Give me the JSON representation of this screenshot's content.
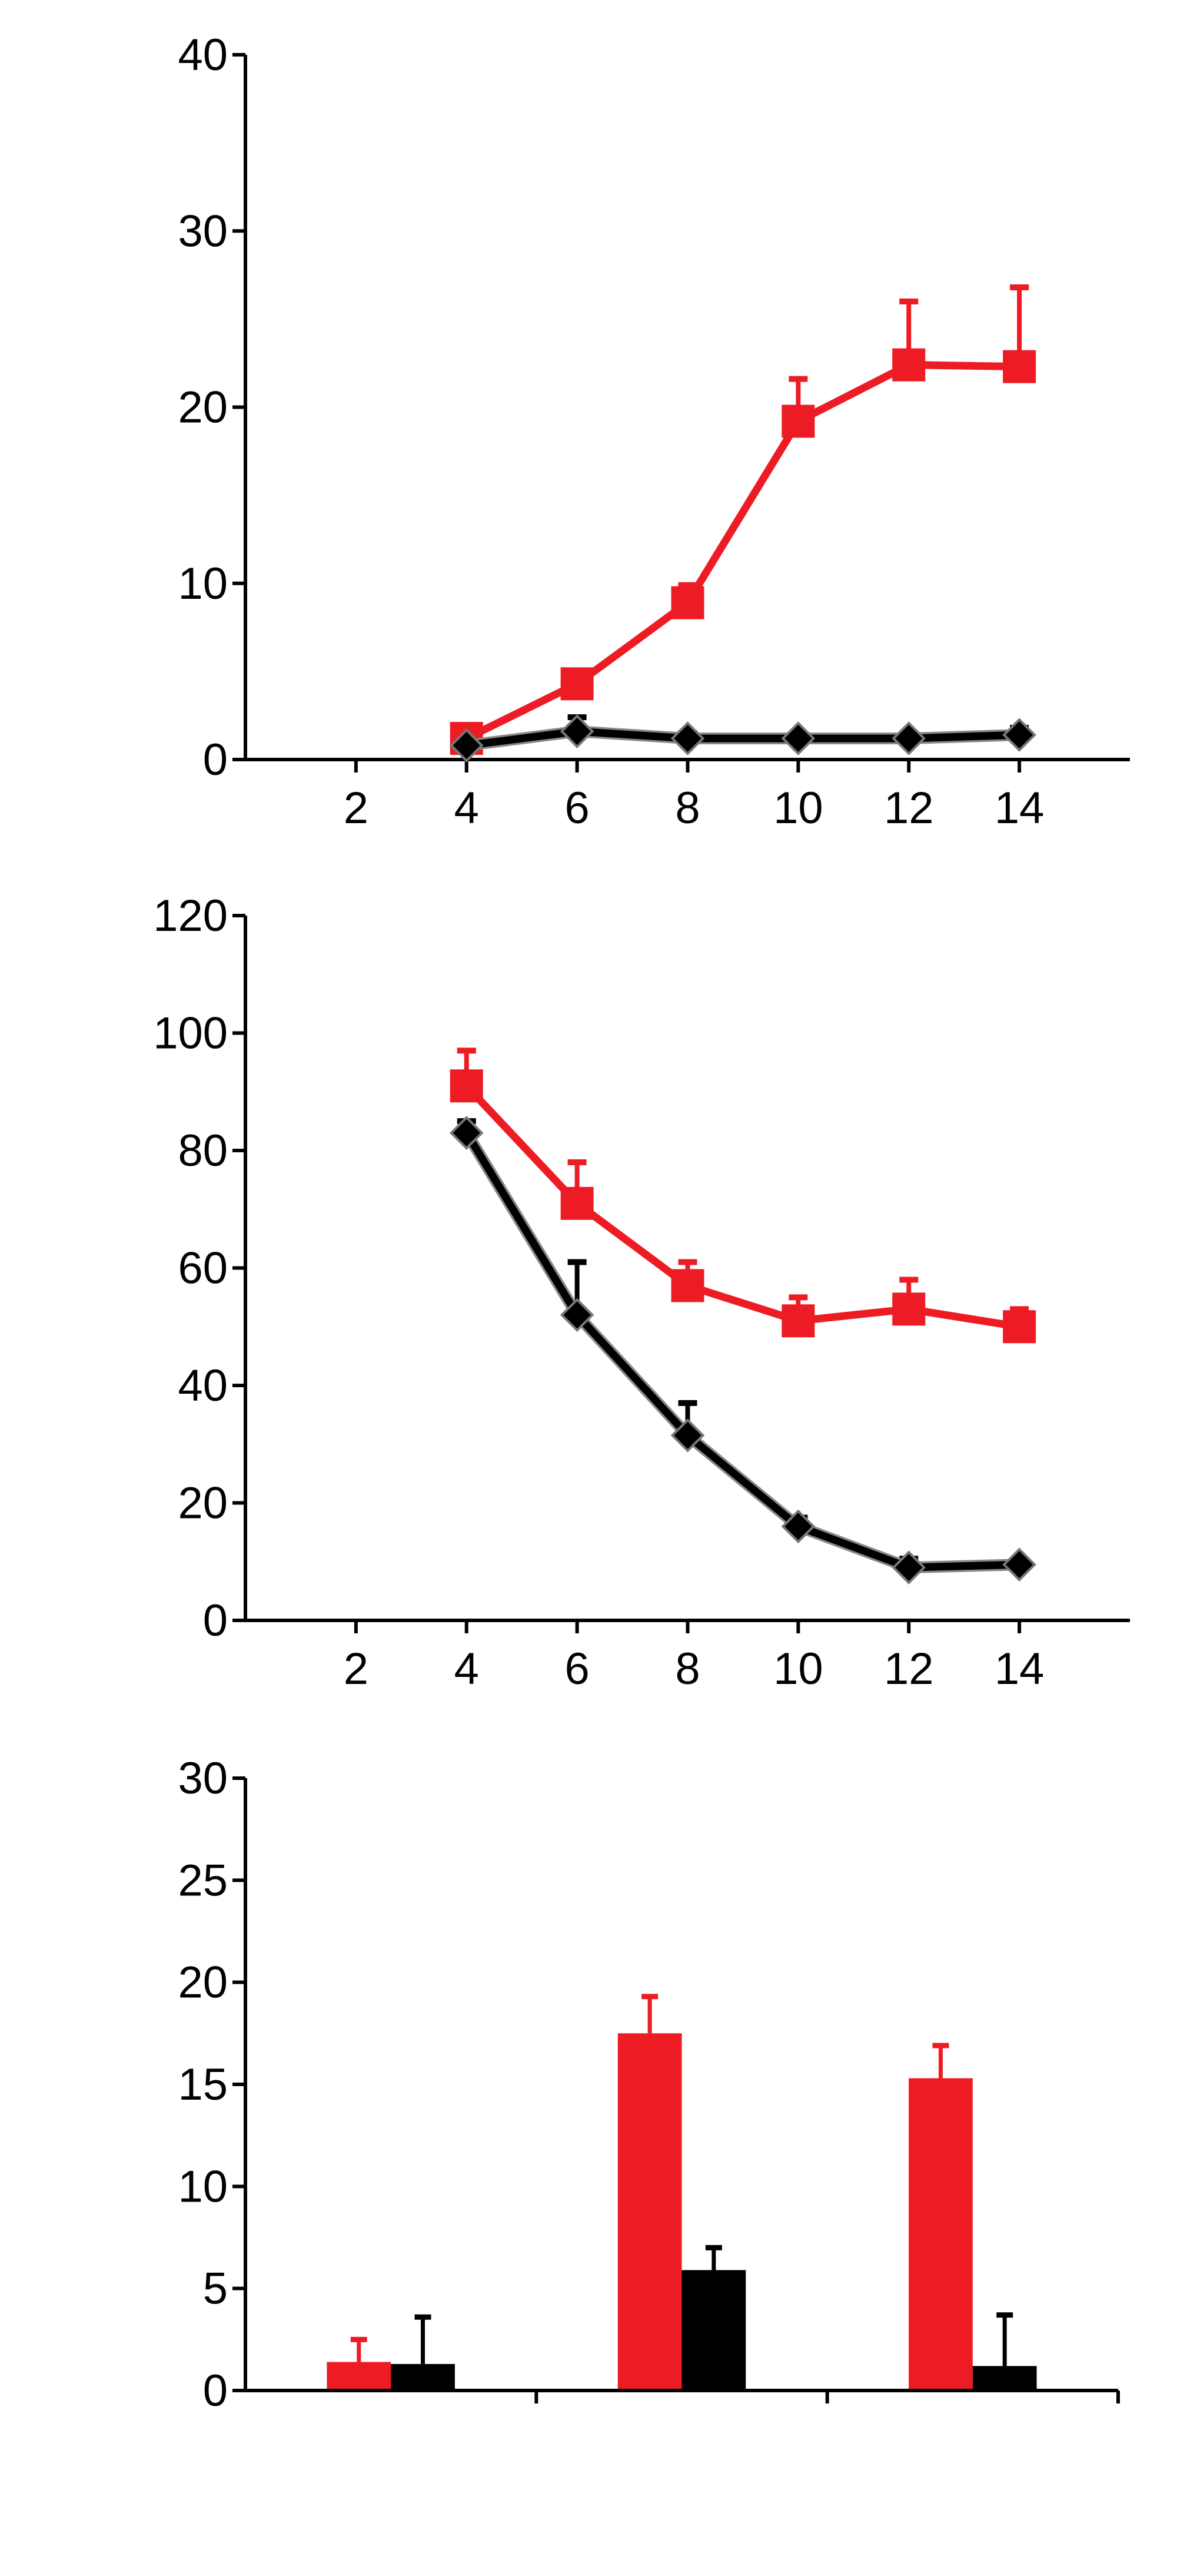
{
  "colors": {
    "treated": "#ED1C24",
    "control": "#000000"
  },
  "chart_data": [
    {
      "type": "line",
      "xlim": [
        0,
        16
      ],
      "ylim": [
        0,
        40
      ],
      "xticks": [
        "2",
        "4",
        "6",
        "8",
        "10",
        "12",
        "14"
      ],
      "yticks": [
        "0",
        "10",
        "20",
        "30",
        "40"
      ],
      "grid": false,
      "series": [
        {
          "color": "#ED1C24",
          "marker": "square",
          "x": [
            4,
            6,
            8,
            10,
            12,
            14
          ],
          "y": [
            1.2,
            4.3,
            8.9,
            19.2,
            22.4,
            22.3
          ],
          "err": [
            0.4,
            0.6,
            1.0,
            2.4,
            3.6,
            4.5
          ]
        },
        {
          "color": "#000000",
          "marker": "diamond",
          "x": [
            4,
            6,
            8,
            10,
            12,
            14
          ],
          "y": [
            0.8,
            1.6,
            1.2,
            1.2,
            1.2,
            1.4
          ],
          "err": [
            0.2,
            0.8,
            0.3,
            0.2,
            0.2,
            0.4
          ]
        }
      ]
    },
    {
      "type": "line",
      "xlim": [
        0,
        16
      ],
      "ylim": [
        0,
        120
      ],
      "xticks": [
        "2",
        "4",
        "6",
        "8",
        "10",
        "12",
        "14"
      ],
      "yticks": [
        "0",
        "20",
        "40",
        "60",
        "80",
        "100",
        "120"
      ],
      "grid": false,
      "series": [
        {
          "color": "#ED1C24",
          "marker": "square",
          "x": [
            4,
            6,
            8,
            10,
            12,
            14
          ],
          "y": [
            91,
            71,
            57,
            51,
            53,
            50
          ],
          "err": [
            6,
            7,
            4,
            4,
            5,
            3
          ]
        },
        {
          "color": "#000000",
          "marker": "diamond",
          "x": [
            4,
            6,
            8,
            10,
            12,
            14
          ],
          "y": [
            83,
            52,
            31.5,
            16,
            9,
            9.5
          ],
          "err": [
            2,
            9,
            5.5,
            1.5,
            1.5,
            0.5
          ]
        }
      ]
    },
    {
      "type": "bar",
      "ylim": [
        0,
        30
      ],
      "yticks": [
        "0",
        "5",
        "10",
        "15",
        "20",
        "25",
        "30"
      ],
      "groups": 3,
      "grid": false,
      "series": [
        {
          "color": "#ED1C24",
          "values": [
            1.4,
            17.5,
            15.3
          ],
          "err": [
            1.1,
            1.8,
            1.6
          ]
        },
        {
          "color": "#000000",
          "values": [
            1.3,
            5.9,
            1.2
          ],
          "err": [
            2.3,
            1.1,
            2.5
          ]
        }
      ]
    }
  ]
}
